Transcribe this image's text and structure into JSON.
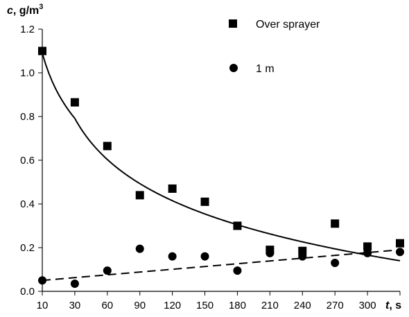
{
  "chart_data": {
    "type": "scatter",
    "title": "",
    "x": [
      10,
      30,
      60,
      90,
      120,
      150,
      180,
      210,
      240,
      270,
      300,
      330
    ],
    "x_tick_labels": [
      "10",
      "30",
      "60",
      "90",
      "120",
      "150",
      "180",
      "210",
      "240",
      "270",
      "300"
    ],
    "xlabel": {
      "var": "t",
      "unit": ", s"
    },
    "ylabel": {
      "var": "c",
      "unit": ", g/m",
      "sup": "3"
    },
    "ylim": [
      0.0,
      1.2
    ],
    "y_ticks": [
      0.0,
      0.2,
      0.4,
      0.6,
      0.8,
      1.0,
      1.2
    ],
    "y_tick_labels": [
      "0.0",
      "0.2",
      "0.4",
      "0.6",
      "0.8",
      "1.0",
      "1.2"
    ],
    "grid": false,
    "legend_position": "top-right",
    "series": [
      {
        "name": "Over sprayer",
        "marker": "square",
        "points": [
          [
            10,
            1.1
          ],
          [
            30,
            0.865
          ],
          [
            60,
            0.665
          ],
          [
            90,
            0.44
          ],
          [
            120,
            0.47
          ],
          [
            150,
            0.41
          ],
          [
            180,
            0.3
          ],
          [
            210,
            0.19
          ],
          [
            240,
            0.185
          ],
          [
            270,
            0.31
          ],
          [
            300,
            0.205
          ],
          [
            330,
            0.22
          ]
        ],
        "trendline": {
          "style": "solid",
          "kind": "logarithmic",
          "from": 10,
          "to": 330,
          "y_at_start": 1.09,
          "y_at_end": 0.14
        }
      },
      {
        "name": "1 m",
        "marker": "circle",
        "points": [
          [
            10,
            0.05
          ],
          [
            30,
            0.035
          ],
          [
            60,
            0.095
          ],
          [
            90,
            0.195
          ],
          [
            120,
            0.16
          ],
          [
            150,
            0.16
          ],
          [
            180,
            0.095
          ],
          [
            210,
            0.175
          ],
          [
            240,
            0.16
          ],
          [
            270,
            0.13
          ],
          [
            300,
            0.175
          ],
          [
            330,
            0.18
          ]
        ],
        "trendline": {
          "style": "dashed",
          "kind": "linear",
          "from": 10,
          "to": 330,
          "y_at_start": 0.05,
          "y_at_end": 0.19
        }
      }
    ]
  }
}
